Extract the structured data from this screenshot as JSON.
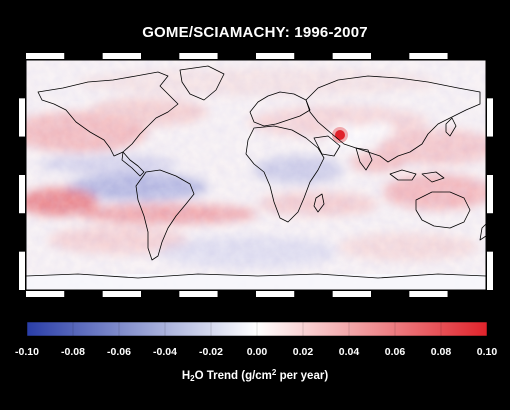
{
  "title": "GOME/SCIAMACHY: 1996-2007",
  "colorbar": {
    "min": -0.1,
    "max": 0.1,
    "tick_labels": [
      "-0.10",
      "-0.08",
      "-0.06",
      "-0.04",
      "-0.02",
      "0.00",
      "0.02",
      "0.04",
      "0.06",
      "0.08",
      "0.10"
    ],
    "label_parts": {
      "a": "H",
      "sub": "2",
      "b": "O Trend (g/cm",
      "sup": "2",
      "c": " per year)"
    },
    "colors": {
      "negative_end": "#2a3ea8",
      "mid": "#ffffff",
      "positive_end": "#e0232b"
    }
  },
  "map": {
    "projection": "equirectangular",
    "border_color": "#000000",
    "coastline_color": "#000000"
  }
}
